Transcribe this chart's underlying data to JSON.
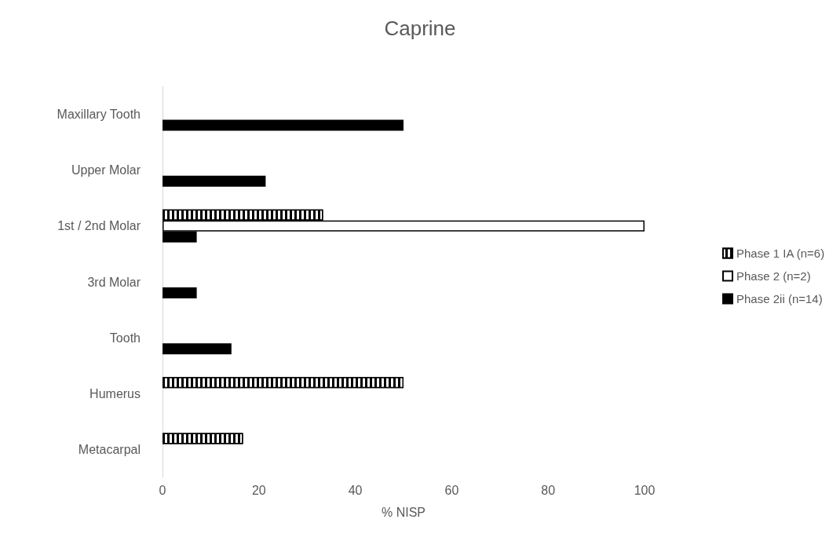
{
  "chart_data": {
    "type": "bar",
    "orientation": "horizontal",
    "title": "Caprine",
    "xlabel": "% NISP",
    "categories": [
      "Maxillary Tooth",
      "Upper Molar",
      "1st / 2nd Molar",
      "3rd Molar",
      "Tooth",
      "Humerus",
      "Metacarpal"
    ],
    "series": [
      {
        "name": "Phase 1 IA (n=6)",
        "color": "#000000",
        "values": [
          null,
          null,
          33.3,
          null,
          null,
          50,
          16.7
        ]
      },
      {
        "name": "Phase 2 (n=2)",
        "color": "#ffffff",
        "values": [
          null,
          null,
          100,
          null,
          null,
          null,
          null
        ]
      },
      {
        "name": "Phase 2ii (n=14)",
        "color": "#000000",
        "values": [
          50,
          21.4,
          7.1,
          7.1,
          14.3,
          null,
          null
        ]
      }
    ],
    "xlim": [
      0,
      100
    ],
    "xticks": [
      0,
      20,
      40,
      60,
      80,
      100
    ],
    "grid": false,
    "legend": "right"
  }
}
